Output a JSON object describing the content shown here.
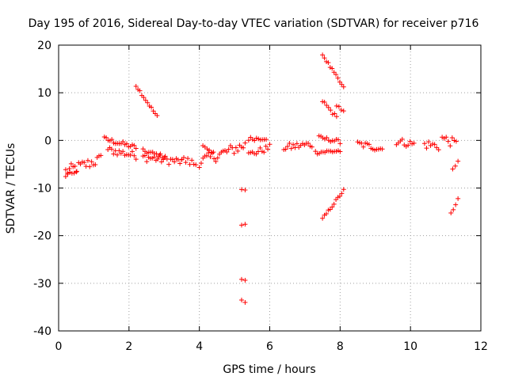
{
  "chart_data": {
    "type": "scatter",
    "title": "Day 195 of 2016, Sidereal Day-to-day VTEC variation (SDTVAR) for receiver p716",
    "xlabel": "GPS time / hours",
    "ylabel": "SDTVAR / TECUs",
    "xlim": [
      0,
      12
    ],
    "ylim": [
      -40,
      20
    ],
    "xticks": [
      0,
      2,
      4,
      6,
      8,
      10,
      12
    ],
    "yticks": [
      -40,
      -30,
      -20,
      -10,
      0,
      10,
      20
    ],
    "xtick_labels": [
      "0",
      "2",
      "4",
      "6",
      "8",
      "10",
      "12"
    ],
    "ytick_labels": [
      "-40",
      "-30",
      "-20",
      "-10",
      "0",
      "10",
      "20"
    ],
    "grid": true,
    "marker": "plus",
    "color": "#ff0000",
    "segments": [
      {
        "x": [
          0.2,
          1.2
        ],
        "y": [
          -6.5,
          -4.0
        ],
        "spread": 1.2
      },
      {
        "x": [
          0.2,
          0.5
        ],
        "y": [
          -7.2,
          -6.5
        ],
        "spread": 0.5
      },
      {
        "x": [
          1.3,
          2.2
        ],
        "y": [
          0.3,
          -1.5
        ],
        "spread": 0.5
      },
      {
        "x": [
          1.4,
          2.2
        ],
        "y": [
          -2.0,
          -3.2
        ],
        "spread": 0.8
      },
      {
        "x": [
          2.2,
          2.8
        ],
        "y": [
          11.5,
          5.0
        ],
        "spread": 0.3
      },
      {
        "x": [
          2.4,
          3.5
        ],
        "y": [
          -3.5,
          -4.5
        ],
        "spread": 0.9
      },
      {
        "x": [
          2.4,
          3.0
        ],
        "y": [
          -2.2,
          -3.4
        ],
        "spread": 0.4
      },
      {
        "x": [
          3.5,
          3.9
        ],
        "y": [
          -4.0,
          -5.0
        ],
        "spread": 0.9
      },
      {
        "x": [
          4.0,
          5.3
        ],
        "y": [
          -4.5,
          -1.0
        ],
        "spread": 1.2
      },
      {
        "x": [
          4.1,
          4.4
        ],
        "y": [
          -1.0,
          -2.5
        ],
        "spread": 0.4
      },
      {
        "x": [
          5.2,
          5.3
        ],
        "y": [
          -10.5,
          -10.5
        ],
        "spread": 0.2
      },
      {
        "x": [
          5.2,
          5.3
        ],
        "y": [
          -17.8,
          -17.8
        ],
        "spread": 0.3
      },
      {
        "x": [
          5.2,
          5.3
        ],
        "y": [
          -29.3,
          -29.3
        ],
        "spread": 0.2
      },
      {
        "x": [
          5.2,
          5.3
        ],
        "y": [
          -33.5,
          -34.0
        ],
        "spread": 0.3
      },
      {
        "x": [
          5.4,
          5.9
        ],
        "y": [
          0.3,
          0.5
        ],
        "spread": 0.4
      },
      {
        "x": [
          5.4,
          6.0
        ],
        "y": [
          -3.0,
          -1.5
        ],
        "spread": 0.7
      },
      {
        "x": [
          6.4,
          7.2
        ],
        "y": [
          -1.5,
          -0.8
        ],
        "spread": 0.8
      },
      {
        "x": [
          7.3,
          8.0
        ],
        "y": [
          -2.5,
          -2.2
        ],
        "spread": 0.4
      },
      {
        "x": [
          7.4,
          8.0
        ],
        "y": [
          0.6,
          -0.3
        ],
        "spread": 0.4
      },
      {
        "x": [
          7.5,
          8.1
        ],
        "y": [
          18.0,
          11.0
        ],
        "spread": 0.3
      },
      {
        "x": [
          7.5,
          7.9
        ],
        "y": [
          8.3,
          4.8
        ],
        "spread": 0.4
      },
      {
        "x": [
          7.9,
          8.1
        ],
        "y": [
          7.5,
          6.0
        ],
        "spread": 0.3
      },
      {
        "x": [
          7.5,
          8.1
        ],
        "y": [
          -16.5,
          -10.5
        ],
        "spread": 0.3
      },
      {
        "x": [
          8.5,
          9.2
        ],
        "y": [
          -0.7,
          -1.8
        ],
        "spread": 0.7
      },
      {
        "x": [
          9.6,
          10.1
        ],
        "y": [
          -0.2,
          -0.8
        ],
        "spread": 0.8
      },
      {
        "x": [
          10.4,
          10.8
        ],
        "y": [
          -0.8,
          -1.2
        ],
        "spread": 1.0
      },
      {
        "x": [
          10.9,
          11.3
        ],
        "y": [
          0.5,
          -0.8
        ],
        "spread": 1.0
      },
      {
        "x": [
          11.2,
          11.35
        ],
        "y": [
          -5.8,
          -4.5
        ],
        "spread": 0.4
      },
      {
        "x": [
          11.15,
          11.35
        ],
        "y": [
          -15.5,
          -12.5
        ],
        "spread": 0.3
      }
    ]
  }
}
